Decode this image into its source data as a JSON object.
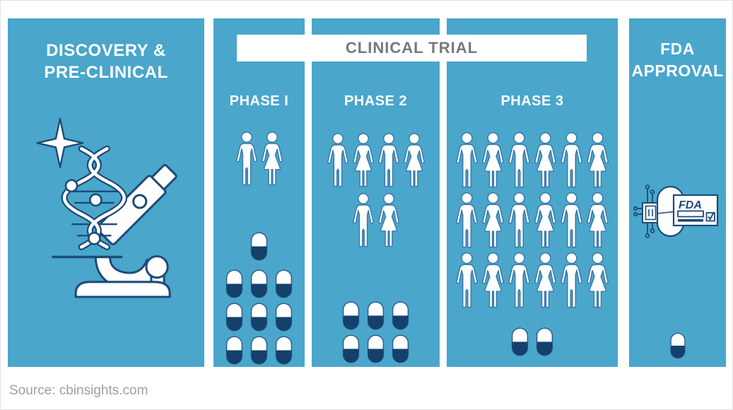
{
  "colors": {
    "panel_blue": "#4AA6CB",
    "pill_navy": "#14416B",
    "person_outline": "#3B79A9",
    "icon_stroke_navy": "#1C4B78",
    "banner_text_gray": "#77787B",
    "source_text_gray": "#9BA0A5",
    "white": "#FFFFFF"
  },
  "stages": {
    "discovery": {
      "title_line1": "DISCOVERY &",
      "title_line2": "PRE-CLINICAL",
      "icon": "microscope-dna-sparkle"
    },
    "clinical": {
      "banner": "CLINICAL TRIAL",
      "phases": [
        {
          "label": "PHASE I",
          "people_rows": [
            2
          ],
          "people_total": 2,
          "pill_rows": [
            1,
            3,
            3,
            3
          ],
          "pills_total": 10
        },
        {
          "label": "PHASE 2",
          "people_rows": [
            4,
            2
          ],
          "people_total": 6,
          "pill_rows": [
            3,
            3
          ],
          "pills_total": 6
        },
        {
          "label": "PHASE 3",
          "people_rows": [
            6,
            6,
            6
          ],
          "people_total": 18,
          "pill_rows": [
            2
          ],
          "pills_total": 2
        }
      ]
    },
    "fda": {
      "title_line1": "FDA",
      "title_line2": "APPROVAL",
      "icon": "fda-approval-certificate-chip-pill",
      "fda_logo_text": "FDA",
      "pill_rows": [
        1
      ],
      "pills_total": 1
    }
  },
  "source": {
    "label": "Source: cbinsights.com"
  }
}
